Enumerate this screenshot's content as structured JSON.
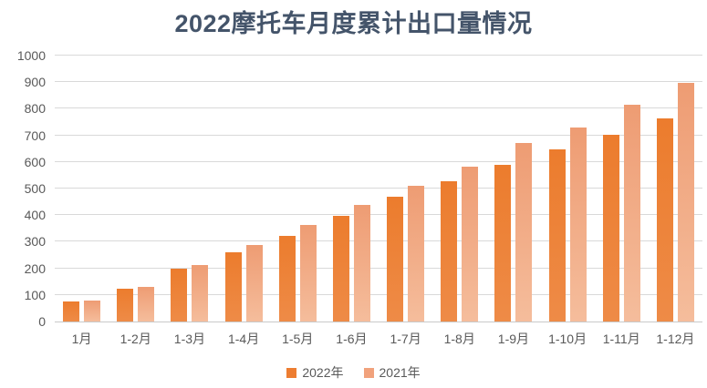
{
  "title": "2022摩托车月度累计出口量情况",
  "colors": {
    "title_text": "#44546A",
    "axis_text": "#595959",
    "gridline": "#D9D9D9",
    "axis_line": "#C9C9C9",
    "series_2022": "#ED7D31",
    "series_2021": "#F1A27C",
    "background": "#FFFFFF"
  },
  "chart_data": {
    "type": "bar",
    "title": "2022摩托车月度累计出口量情况",
    "categories": [
      "1月",
      "1-2月",
      "1-3月",
      "1-4月",
      "1-5月",
      "1-6月",
      "1-7月",
      "1-8月",
      "1-9月",
      "1-10月",
      "1-11月",
      "1-12月"
    ],
    "series": [
      {
        "name": "2022年",
        "color": "#ED7D31",
        "gradient": [
          "#EC7C2D",
          "#EE8B47"
        ],
        "values": [
          75,
          123,
          199,
          259,
          323,
          396,
          469,
          529,
          588,
          649,
          701,
          763
        ]
      },
      {
        "name": "2021年",
        "color": "#F1A27C",
        "gradient": [
          "#EE9C73",
          "#F5BD9C"
        ],
        "values": [
          80,
          131,
          211,
          288,
          363,
          440,
          512,
          582,
          672,
          731,
          816,
          898
        ]
      }
    ],
    "xlabel": "",
    "ylabel": "",
    "ylim": [
      0,
      1000
    ],
    "ytick_step": 100,
    "ytick_labels": [
      "0",
      "100",
      "200",
      "300",
      "400",
      "500",
      "600",
      "700",
      "800",
      "900",
      "1000"
    ],
    "grid": true,
    "legend_position": "bottom"
  }
}
